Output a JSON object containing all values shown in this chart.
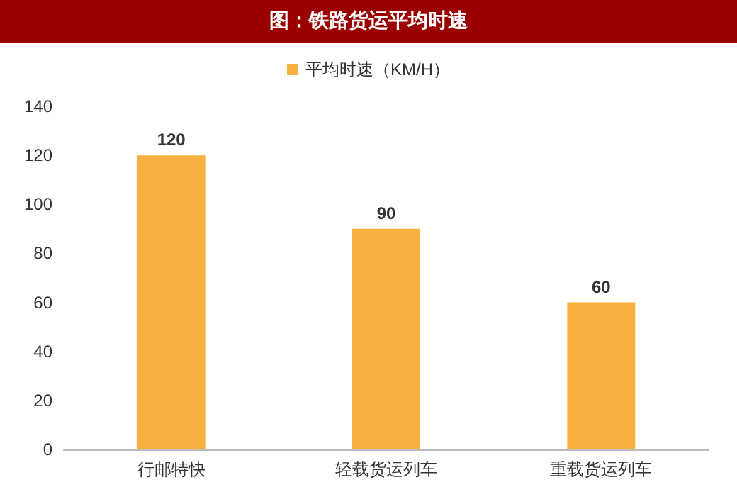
{
  "chart_data": {
    "type": "bar",
    "title": "图：铁路货运平均时速",
    "categories": [
      "行邮特快",
      "轻载货运列车",
      "重载货运列车"
    ],
    "series": [
      {
        "name": "平均时速（KM/H）",
        "color": "#f8b03f",
        "values": [
          120,
          90,
          60
        ]
      }
    ],
    "ylim": [
      0,
      140
    ],
    "yticks": [
      0,
      20,
      40,
      60,
      80,
      100,
      120,
      140
    ],
    "grid": false,
    "legend": "top",
    "data_labels": true
  }
}
